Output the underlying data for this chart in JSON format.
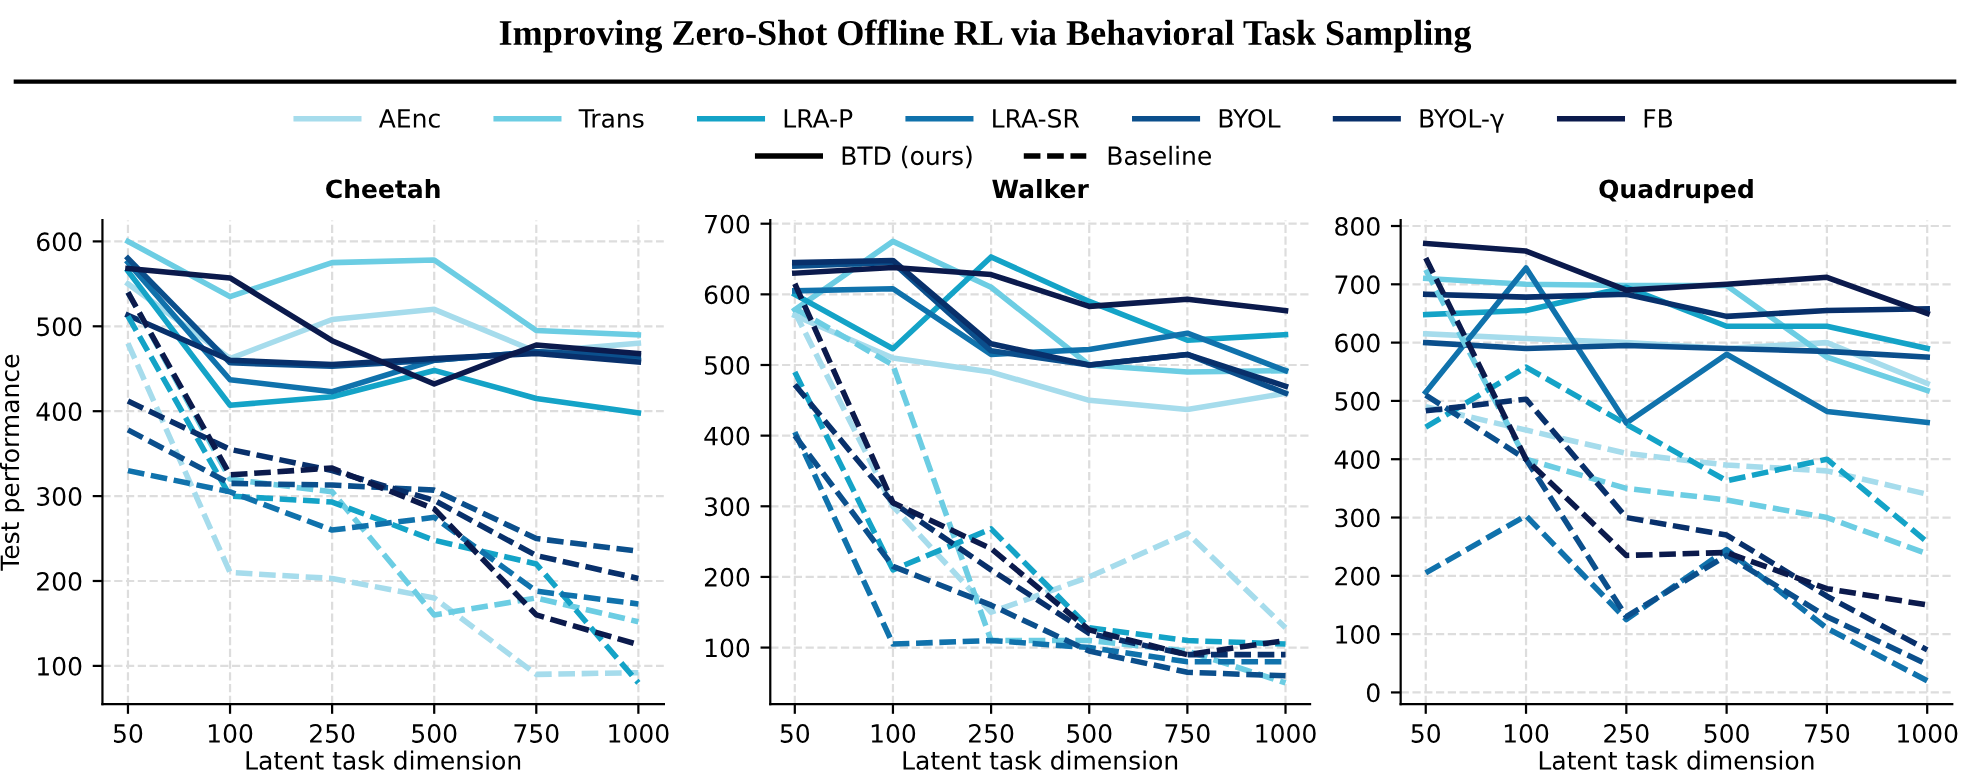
{
  "chart_data": [
    {
      "type": "line",
      "title": "Cheetah",
      "xlabel": "Latent task dimension",
      "ylabel": "Test performance",
      "categories": [
        "50",
        "100",
        "250",
        "500",
        "750",
        "1000"
      ],
      "ylim": [
        55,
        625
      ],
      "yticks": [
        100,
        200,
        300,
        400,
        500,
        600
      ],
      "grid": true,
      "legend": "top",
      "marker": "none",
      "annotations": [
        "Improving Zero-Shot Offline RL via Behavioral Task Sampling",
        "BTD (ours)",
        "Baseline"
      ],
      "series": [
        {
          "name": "AEnc",
          "color": "#a6dcec",
          "line_style": "solid",
          "values": [
            550,
            462,
            508,
            520,
            470,
            480
          ]
        },
        {
          "name": "Trans",
          "color": "#6ccde3",
          "line_style": "solid",
          "values": [
            600,
            535,
            575,
            578,
            495,
            490
          ]
        },
        {
          "name": "LRA-P",
          "color": "#14a3c7",
          "line_style": "solid",
          "values": [
            565,
            407,
            417,
            448,
            415,
            398
          ]
        },
        {
          "name": "LRA-SR",
          "color": "#1072ac",
          "line_style": "solid",
          "values": [
            575,
            437,
            423,
            460,
            470,
            460
          ]
        },
        {
          "name": "BYOL",
          "color": "#0b4f8c",
          "line_style": "solid",
          "values": [
            580,
            457,
            453,
            460,
            470,
            465
          ]
        },
        {
          "name": "BYOL-γ",
          "color": "#08306b",
          "line_style": "solid",
          "values": [
            513,
            460,
            455,
            462,
            468,
            458
          ]
        },
        {
          "name": "FB",
          "color": "#0b1a4c",
          "line_style": "solid",
          "values": [
            568,
            557,
            483,
            432,
            478,
            468
          ]
        },
        {
          "color": "#a6dcec",
          "line_style": "dashed",
          "values": [
            480,
            210,
            203,
            180,
            90,
            92
          ]
        },
        {
          "color": "#6ccde3",
          "line_style": "dashed",
          "values": [
            540,
            320,
            305,
            160,
            180,
            152
          ]
        },
        {
          "color": "#14a3c7",
          "line_style": "dashed",
          "values": [
            512,
            300,
            293,
            248,
            220,
            80
          ]
        },
        {
          "color": "#1072ac",
          "line_style": "dashed",
          "values": [
            330,
            305,
            260,
            275,
            188,
            173
          ]
        },
        {
          "color": "#0b4f8c",
          "line_style": "dashed",
          "values": [
            378,
            315,
            313,
            307,
            250,
            235
          ]
        },
        {
          "color": "#08306b",
          "line_style": "dashed",
          "values": [
            412,
            355,
            330,
            295,
            230,
            203
          ]
        },
        {
          "color": "#0b1a4c",
          "line_style": "dashed",
          "values": [
            540,
            325,
            333,
            285,
            160,
            125
          ]
        }
      ]
    },
    {
      "type": "line",
      "title": "Walker",
      "xlabel": "Latent task dimension",
      "categories": [
        "50",
        "100",
        "250",
        "500",
        "750",
        "1000"
      ],
      "ylim": [
        20,
        705
      ],
      "yticks": [
        100,
        200,
        300,
        400,
        500,
        600,
        700
      ],
      "grid": true,
      "marker": "none",
      "series": [
        {
          "color": "#a6dcec",
          "line_style": "solid",
          "values": [
            570,
            510,
            490,
            450,
            437,
            460
          ]
        },
        {
          "color": "#6ccde3",
          "line_style": "solid",
          "values": [
            578,
            675,
            610,
            500,
            490,
            492
          ]
        },
        {
          "color": "#14a3c7",
          "line_style": "solid",
          "values": [
            600,
            523,
            653,
            590,
            535,
            543
          ]
        },
        {
          "color": "#1072ac",
          "line_style": "solid",
          "values": [
            605,
            608,
            515,
            522,
            545,
            492
          ]
        },
        {
          "color": "#0b4f8c",
          "line_style": "solid",
          "values": [
            640,
            645,
            520,
            500,
            515,
            460
          ]
        },
        {
          "color": "#08306b",
          "line_style": "solid",
          "values": [
            645,
            648,
            530,
            500,
            515,
            470
          ]
        },
        {
          "color": "#0b1a4c",
          "line_style": "solid",
          "values": [
            630,
            638,
            628,
            583,
            593,
            577
          ]
        },
        {
          "color": "#a6dcec",
          "line_style": "dashed",
          "values": [
            575,
            300,
            150,
            200,
            262,
            128
          ]
        },
        {
          "color": "#6ccde3",
          "line_style": "dashed",
          "values": [
            580,
            500,
            110,
            110,
            95,
            50
          ]
        },
        {
          "color": "#14a3c7",
          "line_style": "dashed",
          "values": [
            490,
            210,
            268,
            128,
            110,
            105
          ]
        },
        {
          "color": "#1072ac",
          "line_style": "dashed",
          "values": [
            405,
            105,
            110,
            100,
            80,
            80
          ]
        },
        {
          "color": "#0b4f8c",
          "line_style": "dashed",
          "values": [
            400,
            215,
            160,
            95,
            65,
            60
          ]
        },
        {
          "color": "#08306b",
          "line_style": "dashed",
          "values": [
            472,
            305,
            210,
            120,
            90,
            90
          ]
        },
        {
          "color": "#0b1a4c",
          "line_style": "dashed",
          "values": [
            615,
            305,
            240,
            125,
            90,
            110
          ]
        }
      ]
    },
    {
      "type": "line",
      "title": "Quadruped",
      "xlabel": "Latent task dimension",
      "categories": [
        "50",
        "100",
        "250",
        "500",
        "750",
        "1000"
      ],
      "ylim": [
        -20,
        810
      ],
      "yticks": [
        0,
        100,
        200,
        300,
        400,
        500,
        600,
        700,
        800
      ],
      "grid": true,
      "marker": "none",
      "series": [
        {
          "color": "#a6dcec",
          "line_style": "solid",
          "values": [
            615,
            607,
            600,
            590,
            600,
            530
          ]
        },
        {
          "color": "#6ccde3",
          "line_style": "solid",
          "values": [
            710,
            700,
            698,
            698,
            575,
            518
          ]
        },
        {
          "color": "#14a3c7",
          "line_style": "solid",
          "values": [
            648,
            655,
            695,
            628,
            628,
            590
          ]
        },
        {
          "color": "#1072ac",
          "line_style": "solid",
          "values": [
            515,
            728,
            462,
            580,
            482,
            463
          ]
        },
        {
          "color": "#0b4f8c",
          "line_style": "solid",
          "values": [
            600,
            590,
            595,
            590,
            585,
            575
          ]
        },
        {
          "color": "#08306b",
          "line_style": "solid",
          "values": [
            683,
            678,
            683,
            645,
            655,
            658
          ]
        },
        {
          "color": "#0b1a4c",
          "line_style": "solid",
          "values": [
            770,
            757,
            690,
            700,
            712,
            650
          ]
        },
        {
          "color": "#a6dcec",
          "line_style": "dashed",
          "values": [
            490,
            450,
            410,
            390,
            380,
            340
          ]
        },
        {
          "color": "#6ccde3",
          "line_style": "dashed",
          "values": [
            725,
            400,
            350,
            330,
            300,
            238
          ]
        },
        {
          "color": "#14a3c7",
          "line_style": "dashed",
          "values": [
            455,
            558,
            460,
            363,
            400,
            258
          ]
        },
        {
          "color": "#1072ac",
          "line_style": "dashed",
          "values": [
            205,
            303,
            125,
            245,
            110,
            20
          ]
        },
        {
          "color": "#0b4f8c",
          "line_style": "dashed",
          "values": [
            510,
            400,
            130,
            235,
            130,
            48
          ]
        },
        {
          "color": "#08306b",
          "line_style": "dashed",
          "values": [
            483,
            503,
            300,
            270,
            165,
            73
          ]
        },
        {
          "color": "#0b1a4c",
          "line_style": "dashed",
          "values": [
            745,
            400,
            235,
            240,
            178,
            150
          ]
        }
      ]
    }
  ]
}
